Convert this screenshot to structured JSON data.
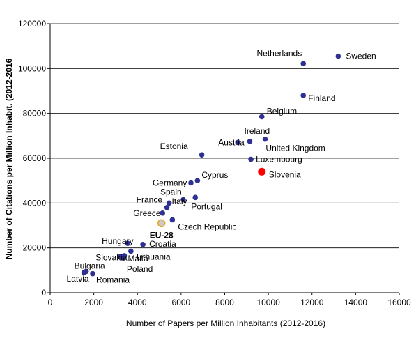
{
  "chart_data": {
    "type": "scatter",
    "xlabel": "Number of Papers per Million Inhabitants (2012-2016)",
    "ylabel": "Number of Citations per Million Inhabit. (2012-2016",
    "xlim": [
      0,
      16000
    ],
    "ylim": [
      0,
      120000
    ],
    "x_ticks": [
      "0",
      "2000",
      "4000",
      "6000",
      "8000",
      "10000",
      "12000",
      "14000",
      "16000"
    ],
    "y_ticks": [
      "0",
      "20000",
      "40000",
      "60000",
      "80000",
      "100000",
      "120000"
    ],
    "grid": "horizontal",
    "colors": {
      "default": "#2e3192",
      "highlight": "#ff0000",
      "eu": "#e6a817"
    },
    "points": [
      {
        "label": "Sweden",
        "x": 13200,
        "y": 105500
      },
      {
        "label": "Netherlands",
        "x": 11600,
        "y": 102200
      },
      {
        "label": "Finland",
        "x": 11600,
        "y": 88000
      },
      {
        "label": "Belgium",
        "x": 9700,
        "y": 78500
      },
      {
        "label": "Ireland",
        "x": 9150,
        "y": 67500
      },
      {
        "label": "United Kingdom",
        "x": 9850,
        "y": 68500
      },
      {
        "label": "Austria",
        "x": 8600,
        "y": 67000
      },
      {
        "label": "Luxembourg",
        "x": 9200,
        "y": 59500
      },
      {
        "label": "Estonia",
        "x": 6950,
        "y": 61500
      },
      {
        "label": "Slovenia",
        "x": 9700,
        "y": 54000,
        "highlight": true
      },
      {
        "label": "Cyprus",
        "x": 6750,
        "y": 50000
      },
      {
        "label": "Germany",
        "x": 6450,
        "y": 49000
      },
      {
        "label": "Spain",
        "x": 6100,
        "y": 41500
      },
      {
        "label": "Portugal",
        "x": 6650,
        "y": 42500
      },
      {
        "label": "France",
        "x": 5450,
        "y": 40000
      },
      {
        "label": "Italy",
        "x": 5350,
        "y": 38000
      },
      {
        "label": "Greece",
        "x": 5150,
        "y": 35500
      },
      {
        "label": "Czech Republic",
        "x": 5600,
        "y": 32500
      },
      {
        "label": "EU-28",
        "x": 5100,
        "y": 31000,
        "eu": true
      },
      {
        "label": "Hungary",
        "x": 3550,
        "y": 22000
      },
      {
        "label": "Croatia",
        "x": 4250,
        "y": 21500
      },
      {
        "label": "Lithuania",
        "x": 3700,
        "y": 18500
      },
      {
        "label": "Slovakia",
        "x": 3200,
        "y": 16000
      },
      {
        "label": "Malta",
        "x": 3400,
        "y": 16500
      },
      {
        "label": "Poland",
        "x": 3350,
        "y": 15500
      },
      {
        "label": "Bulgaria",
        "x": 1650,
        "y": 9500
      },
      {
        "label": "Latvia",
        "x": 1550,
        "y": 9000
      },
      {
        "label": "Romania",
        "x": 1950,
        "y": 8500
      }
    ]
  }
}
